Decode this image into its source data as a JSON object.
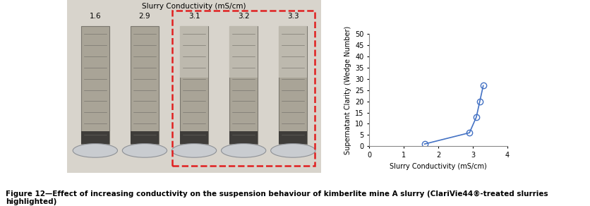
{
  "photo": {
    "title": "Slurry Conductivity (mS/cm)",
    "labels": [
      "1.6",
      "2.9",
      "3.1",
      "3.2",
      "3.3"
    ]
  },
  "chart_data": {
    "type": "line",
    "x": [
      1.6,
      2.9,
      3.1,
      3.2,
      3.3
    ],
    "values": [
      1,
      6,
      13,
      20,
      27
    ],
    "color": "#4472c4",
    "marker": "o",
    "line_style": "solid",
    "xlabel": "Slurry Conductivity (mS/cm)",
    "ylabel": "Supernatant Clarity (Wedge Number)",
    "xlim": [
      0,
      4
    ],
    "xticks": [
      0,
      1,
      2,
      3,
      4
    ],
    "ylim": [
      0,
      50
    ],
    "yticks": [
      0,
      5,
      10,
      15,
      20,
      25,
      30,
      35,
      40,
      45,
      50
    ],
    "grid": false
  },
  "caption": "Figure 12—Effect of increasing conductivity on the suspension behaviour of kimberlite mine A slurry (ClariVie44®-treated slurries highlighted)"
}
